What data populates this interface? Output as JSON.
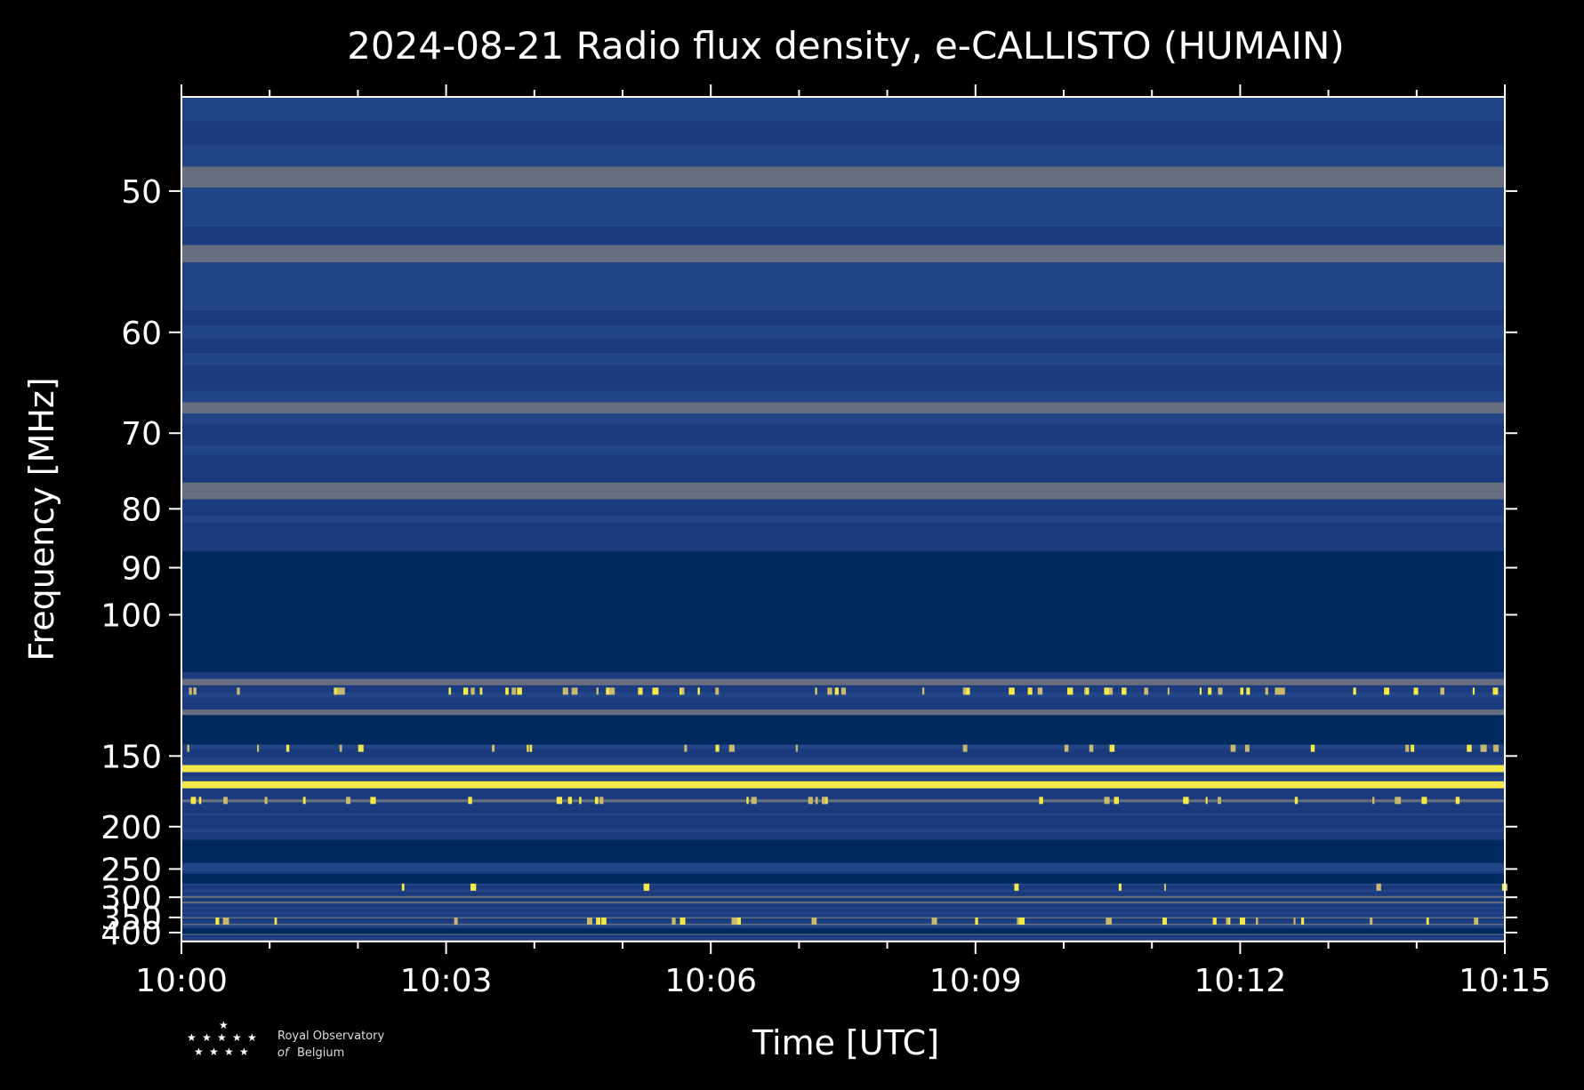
{
  "chart_data": {
    "type": "heatmap",
    "title": "2024-08-21 Radio flux density, e-CALLISTO (HUMAIN)",
    "xlabel": "Time [UTC]",
    "ylabel": "Frequency [MHz]",
    "x_ticks": [
      "10:00",
      "10:03",
      "10:06",
      "10:09",
      "10:12",
      "10:15"
    ],
    "x_range": [
      "10:00",
      "10:15"
    ],
    "y_ticks": [
      50,
      60,
      70,
      80,
      90,
      100,
      150,
      200,
      250,
      300,
      350,
      400
    ],
    "y_range": [
      45,
      437
    ],
    "y_scale": "reciprocal",
    "colormap": [
      "#002a5e",
      "#1e3d82",
      "#727583",
      "#c8b96e",
      "#f5e94a"
    ],
    "background_color": "#002a5e",
    "saturated_bands_mhz": [
      {
        "from": 86,
        "to": 114,
        "description": "blank"
      },
      {
        "from": 129,
        "to": 144,
        "description": "blank"
      },
      {
        "from": 212,
        "to": 240,
        "description": "blank"
      },
      {
        "from": 256,
        "to": 270,
        "description": "blank"
      },
      {
        "from": 385,
        "to": 402,
        "description": "blank"
      }
    ],
    "bright_lines_mhz": [
      157,
      167
    ],
    "grid": false
  },
  "logo": {
    "line1": "Royal Observatory",
    "line2_a": "of",
    "line2_b": "Belgium"
  }
}
